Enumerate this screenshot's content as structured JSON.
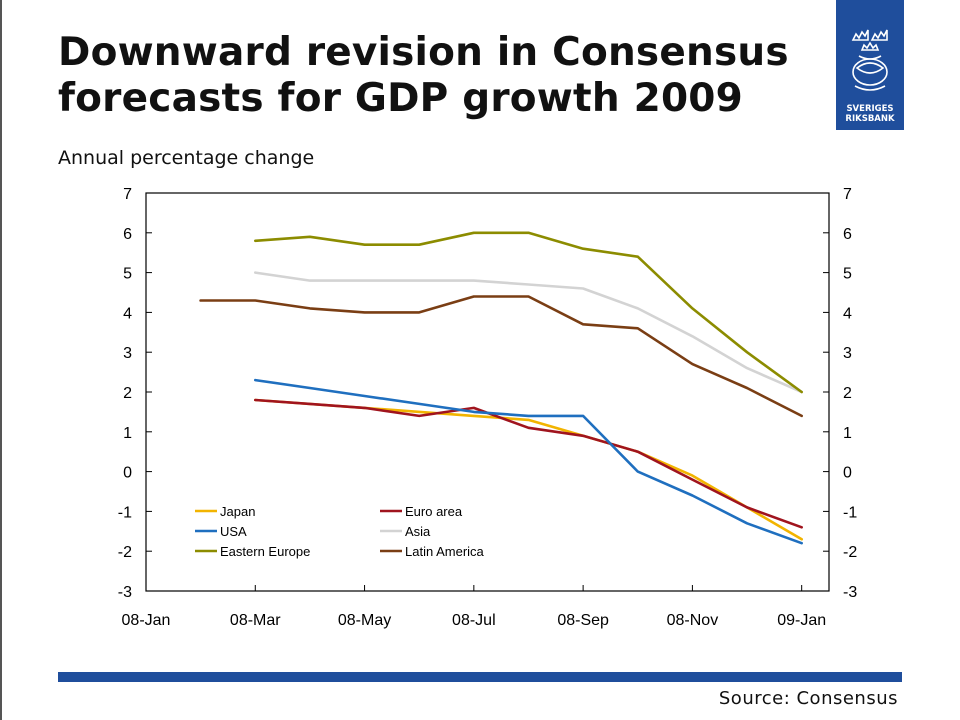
{
  "header": {
    "title": "Downward revision in Consensus forecasts for GDP growth 2009",
    "subtitle": "Annual percentage change"
  },
  "logo": {
    "line1": "SVERIGES",
    "line2": "RIKSBANK",
    "brand_color": "#1f4e9c"
  },
  "footer": {
    "source": "Source: Consensus"
  },
  "chart_data": {
    "type": "line",
    "title": "Downward revision in Consensus forecasts for GDP growth 2009",
    "subtitle": "Annual percentage change",
    "ylim": [
      -3,
      7
    ],
    "yticks": [
      "7",
      "6",
      "5",
      "4",
      "3",
      "2",
      "1",
      "0",
      "-1",
      "-2",
      "-3"
    ],
    "x_tick_labels": [
      "08-Jan",
      "08-Mar",
      "08-May",
      "08-Jul",
      "08-Sep",
      "08-Nov",
      "09-Jan"
    ],
    "x_tick_months": [
      0,
      2,
      4,
      6,
      8,
      10,
      12
    ],
    "xlim_months": [
      0,
      12.5
    ],
    "dual_y_axis": true,
    "grid": false,
    "legend_position": "bottom-left",
    "series": [
      {
        "name": "Japan",
        "color": "#f2b400",
        "x": [
          2,
          4,
          6,
          7,
          8,
          9,
          10,
          11,
          12
        ],
        "y": [
          1.8,
          1.6,
          1.4,
          1.3,
          0.9,
          0.5,
          -0.1,
          -0.9,
          -1.7
        ]
      },
      {
        "name": "Euro area",
        "color": "#a0141e",
        "x": [
          2,
          3,
          4,
          5,
          6,
          7,
          8,
          9,
          10,
          11,
          12
        ],
        "y": [
          1.8,
          1.7,
          1.6,
          1.4,
          1.6,
          1.1,
          0.9,
          0.5,
          -0.2,
          -0.9,
          -1.4
        ]
      },
      {
        "name": "USA",
        "color": "#1f6fbf",
        "x": [
          2,
          3,
          4,
          5,
          6,
          7,
          8,
          9,
          10,
          11,
          12
        ],
        "y": [
          2.3,
          2.1,
          1.9,
          1.7,
          1.5,
          1.4,
          1.4,
          0.0,
          -0.6,
          -1.3,
          -1.8
        ]
      },
      {
        "name": "Asia",
        "color": "#d3d3d3",
        "x": [
          2,
          3,
          4,
          5,
          6,
          7,
          8,
          9,
          10,
          11,
          12
        ],
        "y": [
          5.0,
          4.8,
          4.8,
          4.8,
          4.8,
          4.7,
          4.6,
          4.1,
          3.4,
          2.6,
          2.0
        ]
      },
      {
        "name": "Eastern Europe",
        "color": "#8c8c00",
        "x": [
          2,
          3,
          4,
          5,
          6,
          7,
          8,
          9,
          10,
          11,
          12
        ],
        "y": [
          5.8,
          5.9,
          5.7,
          5.7,
          6.0,
          6.0,
          5.6,
          5.4,
          4.1,
          3.0,
          2.0
        ]
      },
      {
        "name": "Latin America",
        "color": "#7a3e14",
        "x": [
          1,
          2,
          3,
          4,
          5,
          6,
          7,
          8,
          9,
          10,
          11,
          12
        ],
        "y": [
          4.3,
          4.3,
          4.1,
          4.0,
          4.0,
          4.4,
          4.4,
          3.7,
          3.6,
          2.7,
          2.1,
          1.4
        ]
      }
    ]
  }
}
